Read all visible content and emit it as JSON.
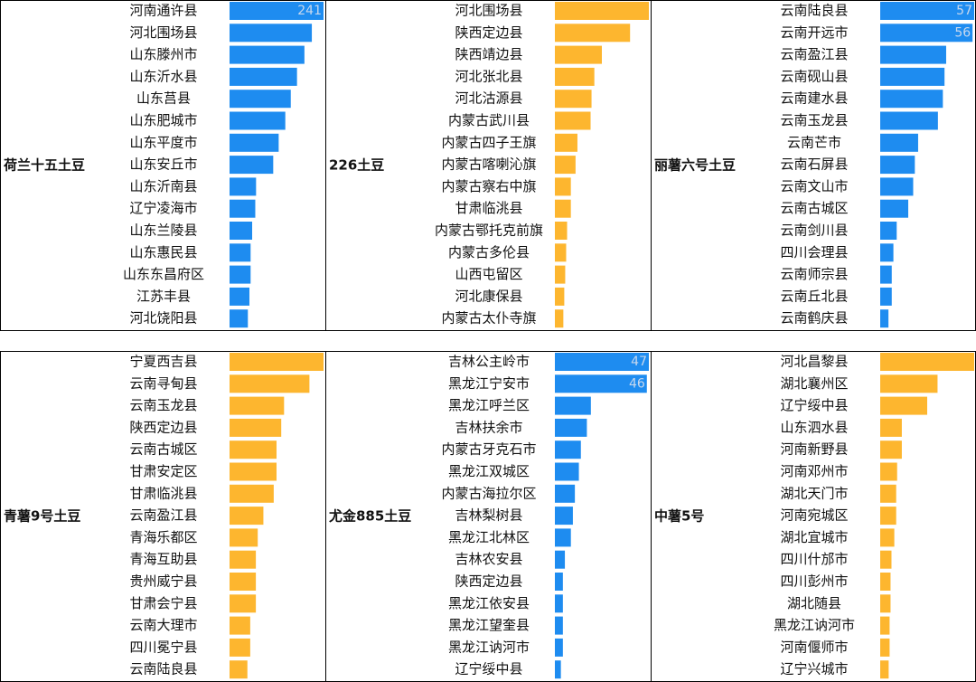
{
  "chart_data": [
    {
      "type": "bar",
      "title": "荷兰十五土豆",
      "color": "#1e8cf0",
      "data_labels": true,
      "xlim": [
        0,
        241
      ],
      "categories": [
        "河南通许县",
        "河北围场县",
        "山东滕州市",
        "山东沂水县",
        "山东莒县",
        "山东肥城市",
        "山东平度市",
        "山东安丘市",
        "山东沂南县",
        "辽宁凌海市",
        "山东兰陵县",
        "山东惠民县",
        "山东东昌府区",
        "江苏丰县",
        "河北饶阳县"
      ],
      "values": [
        241,
        211,
        192,
        173,
        157,
        143,
        126,
        112,
        68,
        66,
        58,
        54,
        54,
        51,
        47
      ]
    },
    {
      "type": "bar",
      "title": "226土豆",
      "color": "#fdb62f",
      "data_labels": false,
      "xlim": [
        0,
        100
      ],
      "categories": [
        "河北围场县",
        "陕西定边县",
        "陕西靖边县",
        "河北张北县",
        "河北沽源县",
        "内蒙古武川县",
        "内蒙古四子王旗",
        "内蒙古喀喇沁旗",
        "内蒙古察右中旗",
        "甘肃临洮县",
        "内蒙古鄂托克前旗",
        "内蒙古多伦县",
        "山西屯留区",
        "河北康保县",
        "内蒙古太仆寺旗"
      ],
      "values": [
        100,
        80,
        50,
        42,
        39,
        38,
        24,
        22,
        17,
        17,
        13,
        12,
        11,
        10,
        9
      ]
    },
    {
      "type": "bar",
      "title": "丽薯六号土豆",
      "color": "#1e8cf0",
      "data_labels": true,
      "xlim": [
        0,
        57
      ],
      "categories": [
        "云南陆良县",
        "云南开远市",
        "云南盈江县",
        "云南砚山县",
        "云南建水县",
        "云南玉龙县",
        "云南芒市",
        "云南石屏县",
        "云南文山市",
        "云南古城区",
        "云南剑川县",
        "四川会理县",
        "云南师宗县",
        "云南丘北县",
        "云南鹤庆县"
      ],
      "values": [
        57,
        56,
        40,
        39,
        38,
        35,
        23,
        21,
        20,
        17,
        10,
        8,
        7,
        7,
        5
      ]
    },
    {
      "type": "bar",
      "title": "青薯9号土豆",
      "color": "#fdb62f",
      "data_labels": false,
      "xlim": [
        0,
        100
      ],
      "categories": [
        "宁夏西吉县",
        "云南寻甸县",
        "云南玉龙县",
        "陕西定边县",
        "云南古城区",
        "甘肃安定区",
        "甘肃临洮县",
        "云南盈江县",
        "青海乐都区",
        "青海互助县",
        "贵州威宁县",
        "甘肃会宁县",
        "云南大理市",
        "四川冕宁县",
        "云南陆良县"
      ],
      "values": [
        100,
        85,
        58,
        55,
        50,
        50,
        47,
        36,
        30,
        28,
        28,
        28,
        22,
        22,
        19
      ]
    },
    {
      "type": "bar",
      "title": "尤金885土豆",
      "color": "#1e8cf0",
      "data_labels": true,
      "xlim": [
        0,
        47
      ],
      "categories": [
        "吉林公主岭市",
        "黑龙江宁安市",
        "黑龙江呼兰区",
        "吉林扶余市",
        "内蒙古牙克石市",
        "黑龙江双城区",
        "内蒙古海拉尔区",
        "吉林梨树县",
        "黑龙江北林区",
        "吉林农安县",
        "陕西定边县",
        "黑龙江依安县",
        "黑龙江望奎县",
        "黑龙江讷河市",
        "辽宁绥中县"
      ],
      "values": [
        47,
        46,
        18,
        16,
        13,
        12,
        10,
        9,
        8,
        5,
        4,
        4,
        4,
        4,
        3
      ]
    },
    {
      "type": "bar",
      "title": "中薯5号",
      "color": "#fdb62f",
      "data_labels": false,
      "xlim": [
        0,
        100
      ],
      "categories": [
        "河北昌黎县",
        "湖北襄州区",
        "辽宁绥中县",
        "山东泗水县",
        "河南新野县",
        "河南邓州市",
        "湖北天门市",
        "河南宛城区",
        "湖北宜城市",
        "四川什邡市",
        "四川彭州市",
        "湖北随县",
        "黑龙江讷河市",
        "河南偃师市",
        "辽宁兴城市"
      ],
      "values": [
        100,
        61,
        50,
        23,
        23,
        18,
        17,
        17,
        15,
        12,
        11,
        11,
        10,
        10,
        9
      ]
    }
  ]
}
